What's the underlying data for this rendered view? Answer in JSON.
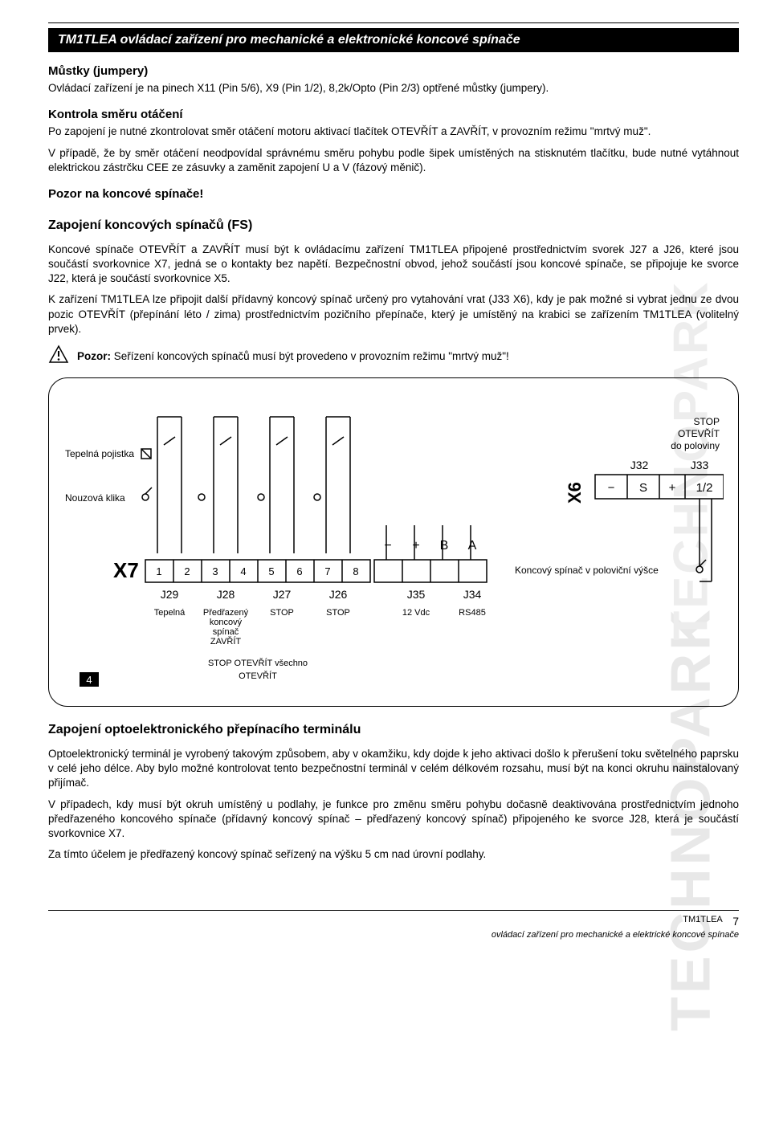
{
  "watermark": "TECHNOPARK",
  "title": "TM1TLEA ovládací zařízení pro mechanické a elektronické koncové spínače",
  "sec1": {
    "h": "Můstky (jumpery)",
    "p": "Ovládací zařízení je na pinech X11 (Pin 5/6), X9 (Pin 1/2), 8,2k/Opto (Pin 2/3) optřené můstky (jumpery)."
  },
  "sec2": {
    "h": "Kontrola směru otáčení",
    "p1": "Po zapojení je nutné zkontrolovat směr otáčení motoru aktivací tlačítek OTEVŘÍT a ZAVŘÍT, v provozním režimu \"mrtvý muž\".",
    "p2": "V případě, že by směr otáčení neodpovídal správnému směru pohybu podle šipek umístěných na stisknutém tlačítku, bude nutné vytáhnout elektrickou zástrčku CEE ze zásuvky a zaměnit zapojení U a V (fázový měnič)."
  },
  "sec3": {
    "h": "Pozor na koncové spínače!"
  },
  "sec4": {
    "h": "Zapojení koncových spínačů (FS)",
    "p1": "Koncové spínače OTEVŘÍT a ZAVŘÍT musí být k ovládacímu zařízení TM1TLEA připojené prostřednictvím svorek J27 a J26, které jsou součástí svorkovnice X7, jedná se o kontakty bez napětí. Bezpečnostní obvod, jehož součástí jsou koncové spínače, se připojuje ke svorce J22, která je součástí svorkovnice X5.",
    "p2": "K zařízení TM1TLEA lze připojit další přídavný koncový spínač určený pro vytahování vrat (J33 X6), kdy je pak možné si vybrat jednu ze dvou pozic OTEVŘÍT (přepínání léto / zima) prostřednictvím pozičního přepínače, který je umístěný na krabici se zařízením TM1TLEA (volitelný prvek)."
  },
  "warn": "Pozor: Seřízení koncových spínačů musí být provedeno v provozním režimu \"mrtvý muž\"!",
  "warn_bold": "Pozor:",
  "diagram": {
    "label_thermal": "Tepelná pojistka",
    "label_emerg": "Nouzová klika",
    "x7": "X7",
    "x6": "X6",
    "terminals_x7": [
      "1",
      "2",
      "3",
      "4",
      "5",
      "6",
      "7",
      "8"
    ],
    "j_labels_x7": [
      "J29",
      "J28",
      "J27",
      "J26",
      "J35",
      "J34"
    ],
    "desc_x7": [
      "Tepelná",
      "Předřazený koncový spínač ZAVŘÍT",
      "STOP",
      "STOP",
      "12 Vdc",
      "RS485"
    ],
    "sub1": "STOP OTEVŘÍT všechno",
    "sub2": "OTEVŘÍT",
    "page_corner": "4",
    "polarity1": [
      "−",
      "+",
      "B",
      "A"
    ],
    "right_top": [
      "STOP",
      "OTEVŘÍT",
      "do poloviny"
    ],
    "j32": "J32",
    "j33": "J33",
    "x6_cells": [
      "−",
      "S",
      "+",
      "1/2"
    ],
    "right_label": "Koncový spínač v poloviční výšce"
  },
  "sec5": {
    "h": "Zapojení optoelektronického přepínacího terminálu",
    "p1": "Optoelektronický terminál je vyrobený takovým způsobem, aby v okamžiku, kdy dojde k jeho aktivaci došlo k přerušení toku světelného paprsku v celé jeho délce. Aby bylo možné kontrolovat tento bezpečnostní terminál v celém délkovém rozsahu, musí být na konci okruhu nainstalovaný přijímač.",
    "p2": "V případech, kdy musí být okruh umístěný u podlahy, je funkce pro změnu směru pohybu dočasně deaktivována prostřednictvím jednoho předřazeného koncového spínače (přídavný koncový spínač – předřazený koncový spínač) připojeného ke svorce J28, která je součástí svorkovnice X7.",
    "p3": "Za tímto účelem je předřazený koncový spínač seřízený na výšku 5 cm nad úrovní podlahy."
  },
  "footer": {
    "line1": "TM1TLEA",
    "line2": "ovládací zařízení pro mechanické a elektrické koncové spínače",
    "page": "7"
  }
}
